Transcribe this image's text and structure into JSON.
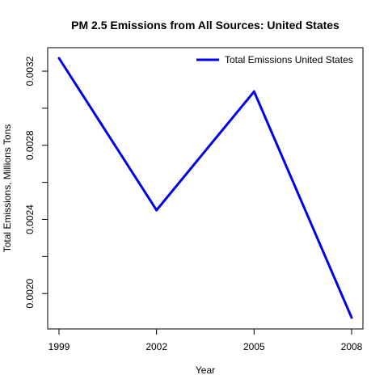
{
  "chart_data": {
    "type": "line",
    "title": "PM 2.5 Emissions from All Sources: United States",
    "xlabel": "Year",
    "ylabel": "Total Emissions, Millions Tons",
    "x": [
      1999,
      2002,
      2005,
      2008
    ],
    "x_tick_labels": [
      "1999",
      "2002",
      "2005",
      "2008"
    ],
    "y_ticks": [
      0.002,
      0.0024,
      0.0028,
      0.0032
    ],
    "y_tick_labels": [
      "0.0020",
      "0.0024",
      "0.0028",
      "0.0032"
    ],
    "xlim": [
      1999,
      2008
    ],
    "ylim": [
      0.00187,
      0.00327
    ],
    "grid": false,
    "legend_position": "top-right",
    "series": [
      {
        "name": "Total Emissions United States",
        "color": "#0000ee",
        "values": [
          0.00327,
          0.00245,
          0.00309,
          0.00187
        ]
      }
    ]
  }
}
